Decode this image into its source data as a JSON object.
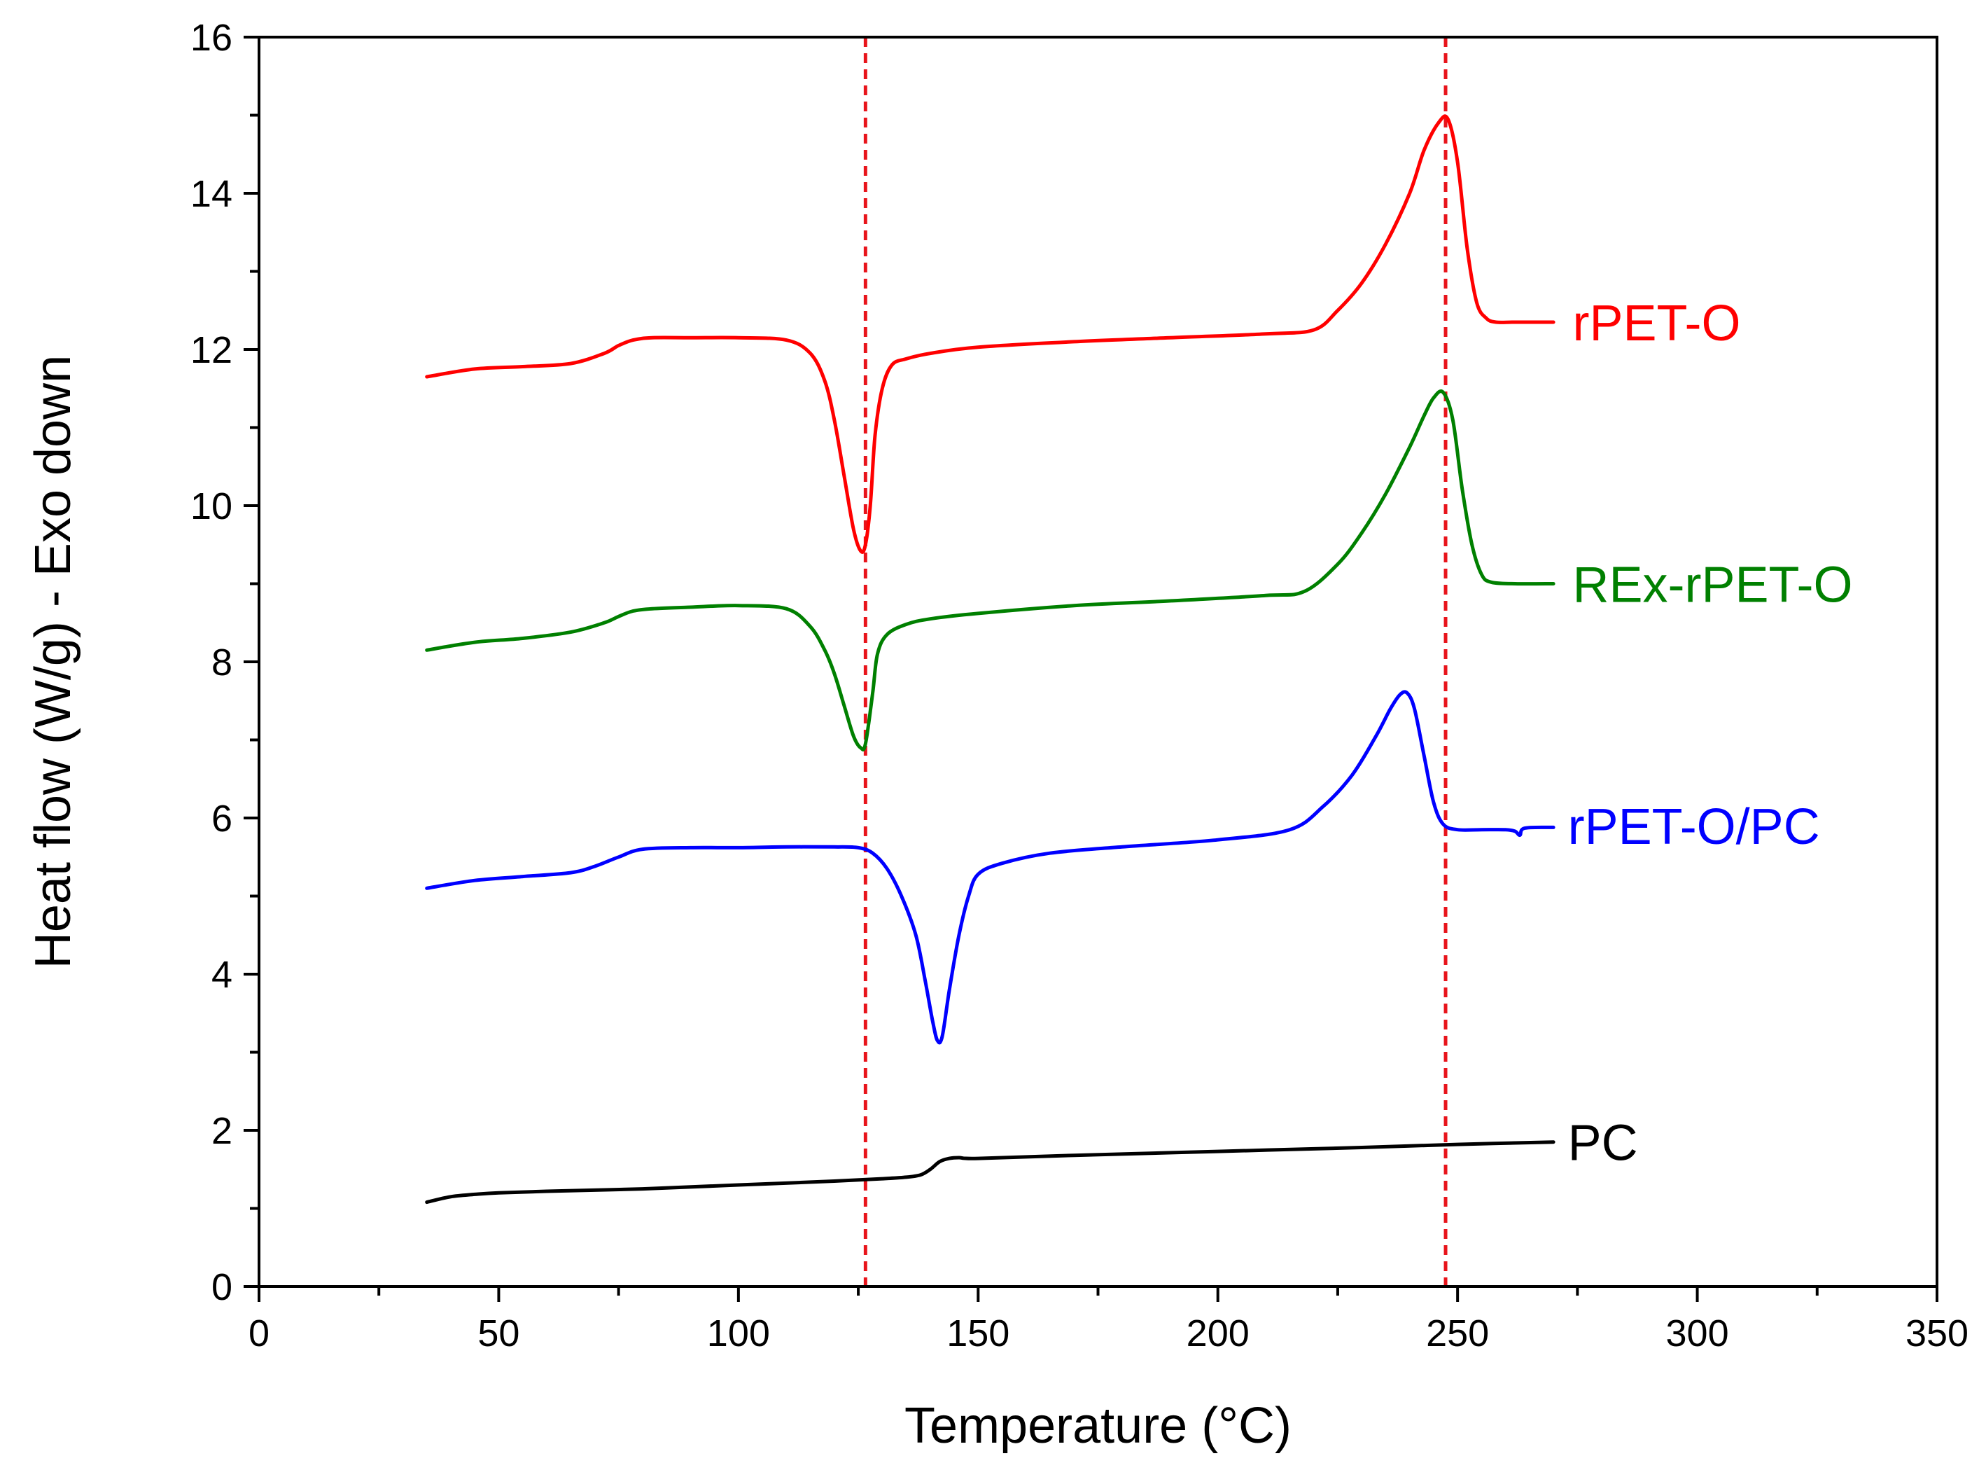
{
  "chart_data": {
    "type": "line",
    "title": "",
    "xlabel": "Temperature (°C)",
    "ylabel": "Heat flow (W/g) - Exo down",
    "xlim": [
      0,
      350
    ],
    "ylim": [
      0,
      16
    ],
    "xticks": [
      0,
      50,
      100,
      150,
      200,
      250,
      300,
      350
    ],
    "yticks": [
      0,
      2,
      4,
      6,
      8,
      10,
      12,
      14,
      16
    ],
    "xticks_minor_step": 25,
    "yticks_minor_step": 1,
    "grid": false,
    "reference_lines": [
      {
        "x": 126.5,
        "color": "#e8141b",
        "style": "dashed"
      },
      {
        "x": 247.5,
        "color": "#e8141b",
        "style": "dashed"
      }
    ],
    "series": [
      {
        "name": "rPET-O",
        "color": "#ff0000",
        "label_at": [
          274,
          12.35
        ],
        "x": [
          35,
          45,
          55,
          65,
          72,
          75,
          78,
          82,
          90,
          100,
          110,
          115,
          118,
          120,
          122,
          124,
          125.5,
          126.5,
          127.5,
          128.5,
          130,
          132,
          135,
          140,
          150,
          170,
          190,
          210,
          220,
          225,
          230,
          235,
          240,
          243,
          246,
          248,
          250,
          252,
          254,
          256,
          258,
          262,
          270
        ],
        "values": [
          11.65,
          11.75,
          11.78,
          11.82,
          11.95,
          12.05,
          12.12,
          12.15,
          12.15,
          12.15,
          12.12,
          11.95,
          11.6,
          11.1,
          10.4,
          9.7,
          9.42,
          9.5,
          10.0,
          10.9,
          11.5,
          11.8,
          11.88,
          11.95,
          12.03,
          12.1,
          12.15,
          12.2,
          12.25,
          12.5,
          12.85,
          13.35,
          14.0,
          14.55,
          14.9,
          14.95,
          14.4,
          13.3,
          12.6,
          12.4,
          12.35,
          12.35,
          12.35
        ]
      },
      {
        "name": "REx-rPET-O",
        "color": "#008000",
        "label_at": [
          274,
          9.0
        ],
        "x": [
          35,
          45,
          55,
          65,
          72,
          75,
          78,
          82,
          90,
          100,
          110,
          115,
          118,
          120,
          122,
          124,
          125.5,
          126.5,
          128,
          129,
          131,
          135,
          140,
          150,
          170,
          190,
          210,
          218,
          225,
          230,
          235,
          240,
          243,
          245,
          247,
          249,
          251,
          253,
          255,
          257,
          262,
          270
        ],
        "values": [
          8.15,
          8.25,
          8.3,
          8.38,
          8.5,
          8.58,
          8.65,
          8.68,
          8.7,
          8.72,
          8.68,
          8.45,
          8.15,
          7.85,
          7.45,
          7.05,
          6.9,
          6.95,
          7.6,
          8.1,
          8.35,
          8.48,
          8.55,
          8.62,
          8.72,
          8.78,
          8.85,
          8.9,
          9.25,
          9.65,
          10.15,
          10.75,
          11.15,
          11.38,
          11.45,
          11.1,
          10.2,
          9.5,
          9.12,
          9.02,
          9.0,
          9.0
        ]
      },
      {
        "name": "rPET-O/PC",
        "color": "#0000ff",
        "label_at": [
          273,
          5.9
        ],
        "x": [
          35,
          45,
          55,
          65,
          70,
          75,
          80,
          90,
          100,
          110,
          120,
          125,
          128,
          131,
          134,
          137,
          139,
          140.5,
          141.5,
          142.5,
          144,
          146,
          148,
          150,
          155,
          165,
          180,
          200,
          215,
          222,
          228,
          233,
          236,
          238,
          239.5,
          241,
          243,
          245,
          247,
          250,
          255,
          260,
          262,
          263,
          264,
          270
        ],
        "values": [
          5.1,
          5.2,
          5.25,
          5.3,
          5.38,
          5.5,
          5.6,
          5.62,
          5.62,
          5.63,
          5.63,
          5.62,
          5.55,
          5.35,
          5.0,
          4.5,
          3.9,
          3.4,
          3.15,
          3.2,
          3.8,
          4.5,
          5.0,
          5.28,
          5.42,
          5.55,
          5.63,
          5.72,
          5.85,
          6.15,
          6.55,
          7.05,
          7.4,
          7.58,
          7.6,
          7.4,
          6.8,
          6.2,
          5.92,
          5.85,
          5.85,
          5.85,
          5.83,
          5.78,
          5.87,
          5.88
        ]
      },
      {
        "name": "PC",
        "color": "#000000",
        "label_at": [
          273,
          1.85
        ],
        "x": [
          35,
          40,
          45,
          50,
          60,
          80,
          100,
          120,
          130,
          135,
          138,
          140,
          142,
          144,
          146,
          150,
          170,
          200,
          230,
          250,
          270
        ],
        "values": [
          1.08,
          1.15,
          1.18,
          1.2,
          1.22,
          1.25,
          1.3,
          1.35,
          1.38,
          1.4,
          1.43,
          1.5,
          1.6,
          1.64,
          1.65,
          1.64,
          1.68,
          1.73,
          1.78,
          1.82,
          1.85
        ]
      }
    ]
  }
}
